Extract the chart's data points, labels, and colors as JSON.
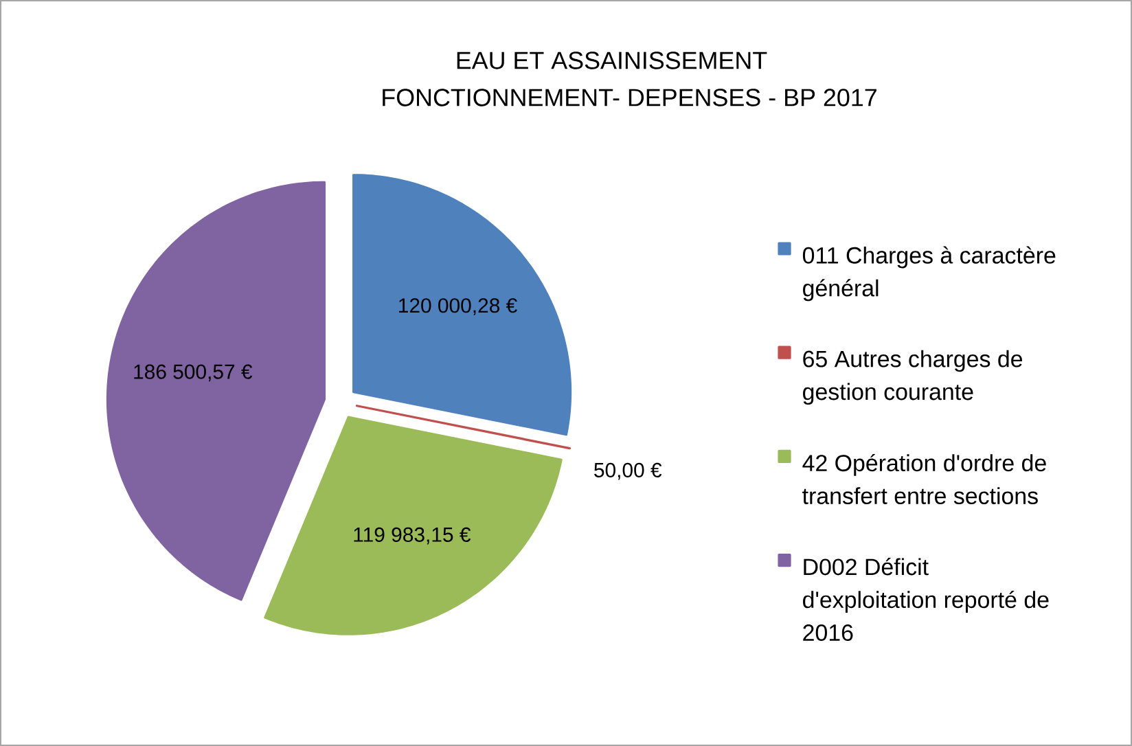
{
  "chart_data": {
    "type": "pie",
    "title": "EAU ET ASSAINISSEMENT",
    "subtitle": "FONCTIONNEMENT- DEPENSES - BP 2017",
    "categories": [
      "011  Charges à caractère général",
      "65 Autres charges de gestion courante",
      "42 Opération d'ordre de transfert entre sections",
      "D002 Déficit d'exploitation reporté de 2016"
    ],
    "values": [
      120000.28,
      50.0,
      119983.15,
      186500.57
    ],
    "colors": [
      "#4f81bd",
      "#c0504d",
      "#9bbb59",
      "#8064a2"
    ],
    "value_labels": [
      "120 000,28 €",
      "50,00 €",
      "119 983,15 €",
      "186 500,57 €"
    ],
    "legend": "right"
  }
}
